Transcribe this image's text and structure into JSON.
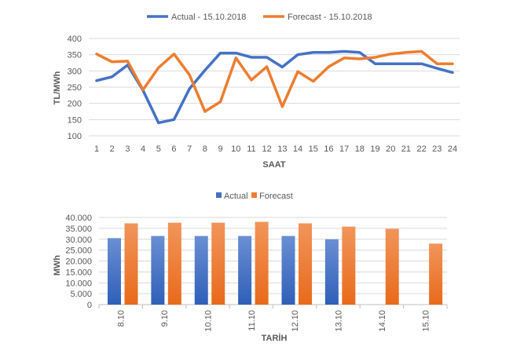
{
  "chart_data": [
    {
      "type": "line",
      "xlabel": "SAAT",
      "ylabel": "TL/MWh",
      "ylim": [
        100,
        400
      ],
      "yticks": [
        100,
        150,
        200,
        250,
        300,
        350,
        400
      ],
      "grid": true,
      "legend": "top",
      "x": [
        1,
        2,
        3,
        4,
        5,
        6,
        7,
        8,
        9,
        10,
        11,
        12,
        13,
        14,
        15,
        16,
        17,
        18,
        19,
        20,
        21,
        22,
        23,
        24
      ],
      "series": [
        {
          "name": "Actual - 15.10.2018",
          "color": "#4472C4",
          "values": [
            270,
            282,
            318,
            240,
            140,
            150,
            245,
            302,
            355,
            355,
            342,
            342,
            312,
            350,
            357,
            357,
            360,
            357,
            322,
            322,
            322,
            322,
            308,
            295
          ]
        },
        {
          "name": "Forecast - 15.10.2018",
          "color": "#ED7D31",
          "values": [
            352,
            328,
            330,
            242,
            310,
            352,
            288,
            175,
            205,
            340,
            272,
            313,
            190,
            298,
            268,
            313,
            340,
            337,
            342,
            352,
            357,
            360,
            322,
            322
          ]
        }
      ]
    },
    {
      "type": "bar",
      "xlabel": "TARİH",
      "ylabel": "MWh",
      "ylim": [
        0,
        40000
      ],
      "yticks": [
        "0",
        "5.000",
        "10.000",
        "15.000",
        "20.000",
        "25.000",
        "30.000",
        "35.000",
        "40.000"
      ],
      "grid": true,
      "legend": "top",
      "categories": [
        "8.10",
        "9.10",
        "10.10",
        "11.10",
        "12.10",
        "13.10",
        "14.10",
        "15.10"
      ],
      "series": [
        {
          "name": "Actual",
          "color": "#4472C4",
          "values": [
            30500,
            31500,
            31500,
            31500,
            31500,
            30000,
            null,
            null
          ]
        },
        {
          "name": "Forecast",
          "color": "#ED7D31",
          "values": [
            37300,
            37600,
            37600,
            38000,
            37300,
            35800,
            34800,
            28000
          ]
        }
      ]
    }
  ]
}
